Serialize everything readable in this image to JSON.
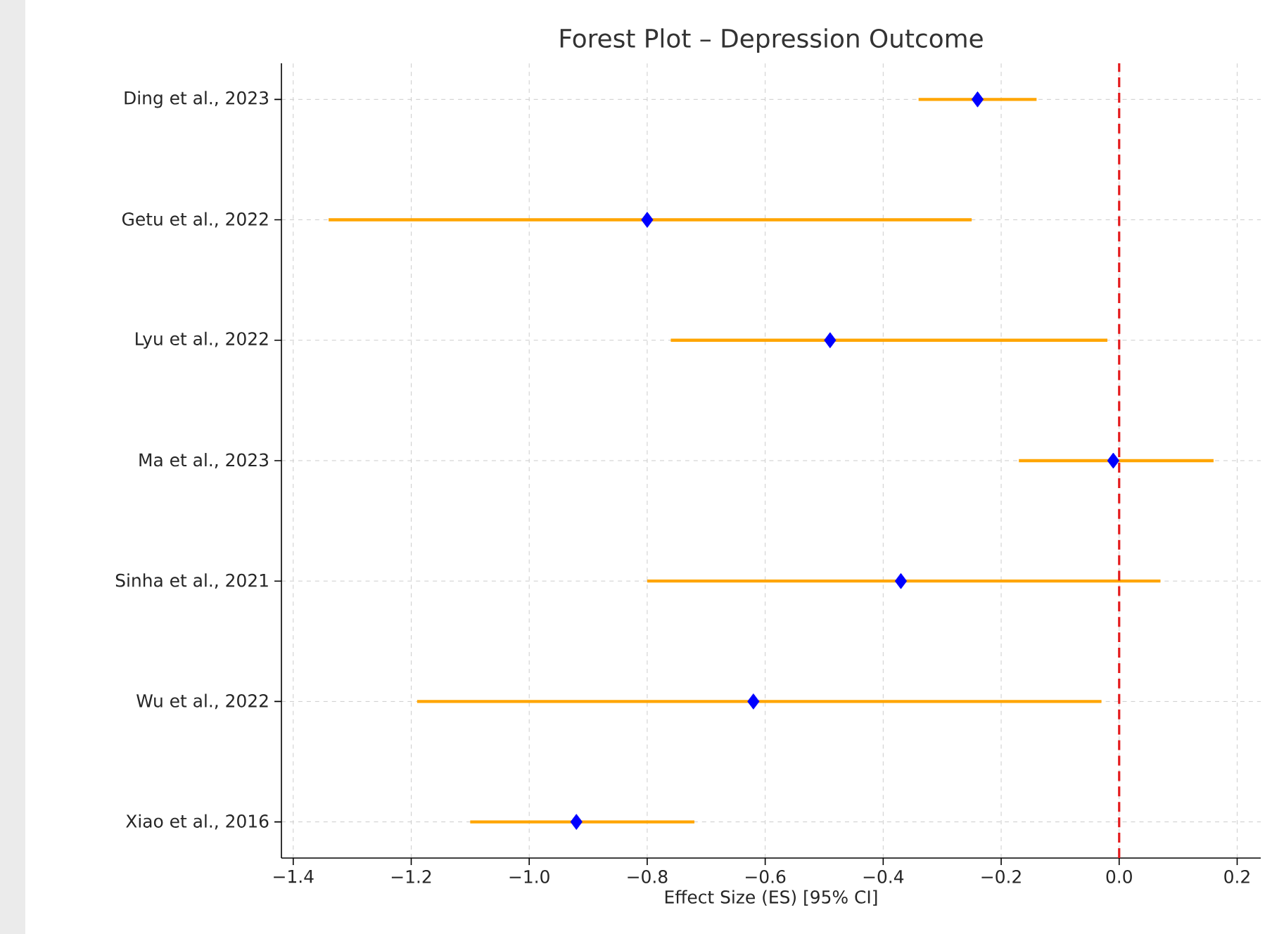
{
  "chart_data": {
    "type": "scatter",
    "orientation": "horizontal",
    "title": "Forest Plot – Depression Outcome",
    "xlabel": "Effect Size (ES) [95% CI]",
    "categories": [
      "Ding et al., 2023",
      "Getu et al., 2022",
      "Lyu et al., 2022",
      "Ma et al., 2023",
      "Sinha et al., 2021",
      "Wu et al., 2022",
      "Xiao et al., 2016"
    ],
    "series": [
      {
        "color": "#0000ff",
        "marker": "diamond",
        "values": [
          -0.24,
          -0.8,
          -0.49,
          -0.01,
          -0.37,
          -0.62,
          -0.92
        ],
        "errors": [
          [
            -0.34,
            -0.14
          ],
          [
            -1.34,
            -0.25
          ],
          [
            -0.76,
            -0.02
          ],
          [
            -0.17,
            0.16
          ],
          [
            -0.8,
            0.07
          ],
          [
            -1.19,
            -0.03
          ],
          [
            -1.1,
            -0.72
          ]
        ]
      }
    ],
    "xlim": [
      -1.42,
      0.24
    ],
    "xticks": [
      {
        "value": -1.4,
        "label": "−1.4"
      },
      {
        "value": -1.2,
        "label": "−1.2"
      },
      {
        "value": -1.0,
        "label": "−1.0"
      },
      {
        "value": -0.8,
        "label": "−0.8"
      },
      {
        "value": -0.6,
        "label": "−0.6"
      },
      {
        "value": -0.4,
        "label": "−0.4"
      },
      {
        "value": -0.2,
        "label": "−0.2"
      },
      {
        "value": 0,
        "label": "0.0"
      },
      {
        "value": 0.2,
        "label": "0.2"
      }
    ],
    "ref_lines": [
      {
        "axis": "x",
        "value": 0,
        "color": "#e41a1c",
        "line_style": "dashed"
      }
    ],
    "grid": true
  }
}
